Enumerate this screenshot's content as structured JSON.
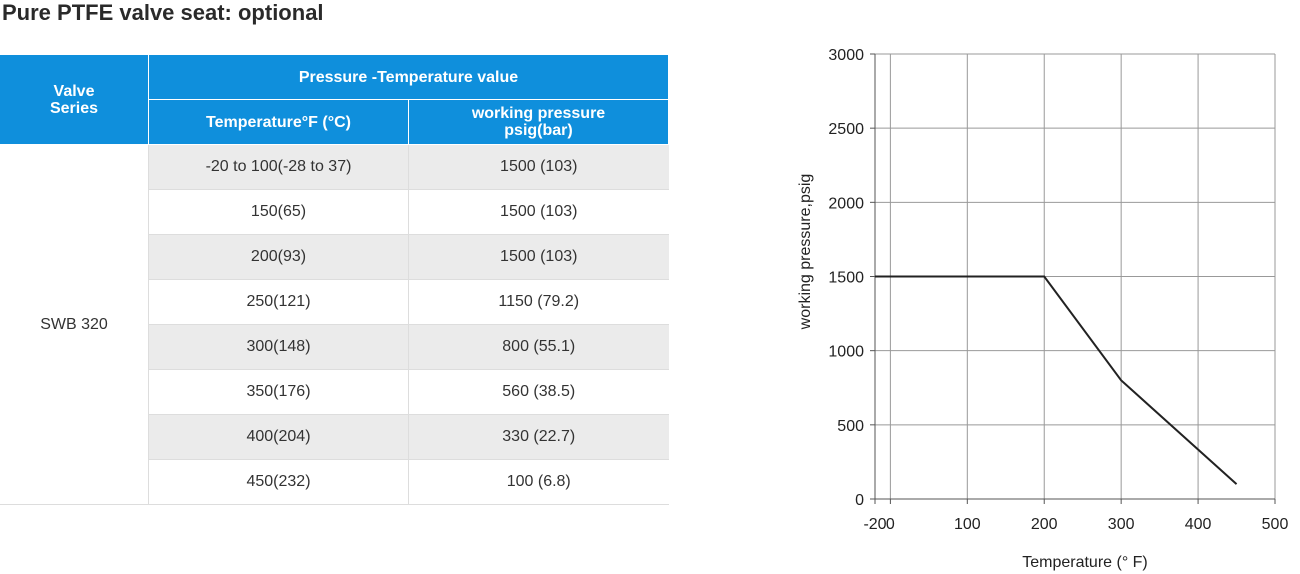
{
  "title": "Pure PTFE valve seat: optional",
  "table": {
    "header": {
      "series_label": "Valve\nSeries",
      "group_label": "Pressure -Temperature value",
      "temp_label": "Temperature°F (°C)",
      "pressure_label": "working pressure\npsig(bar)"
    },
    "series_value": "SWB 320",
    "rows": [
      {
        "temp": "-20  to 100(-28  to 37)",
        "pressure": "1500 (103)"
      },
      {
        "temp": "150(65)",
        "pressure": "1500 (103)"
      },
      {
        "temp": "200(93)",
        "pressure": "1500 (103)"
      },
      {
        "temp": "250(121)",
        "pressure": "1150 (79.2)"
      },
      {
        "temp": "300(148)",
        "pressure": "800 (55.1)"
      },
      {
        "temp": "350(176)",
        "pressure": "560 (38.5)"
      },
      {
        "temp": "400(204)",
        "pressure": "330 (22.7)"
      },
      {
        "temp": "450(232)",
        "pressure": "100 (6.8)"
      }
    ]
  },
  "colors": {
    "header_bg": "#0f8fdc",
    "row_shade": "#ebebeb",
    "grid": "#999999",
    "line": "#222222"
  },
  "chart_data": {
    "type": "line",
    "xlabel": "Temperature (° F)",
    "ylabel": "working pressure,psig",
    "xlim": [
      -20,
      500
    ],
    "ylim": [
      0,
      3000
    ],
    "x_ticks": [
      -20,
      0,
      100,
      200,
      300,
      400,
      500
    ],
    "y_ticks": [
      0,
      500,
      1000,
      1500,
      2000,
      2500,
      3000
    ],
    "grid": true,
    "series": [
      {
        "x": [
          -20,
          200,
          300,
          450
        ],
        "y": [
          1500,
          1500,
          800,
          100
        ]
      }
    ]
  }
}
